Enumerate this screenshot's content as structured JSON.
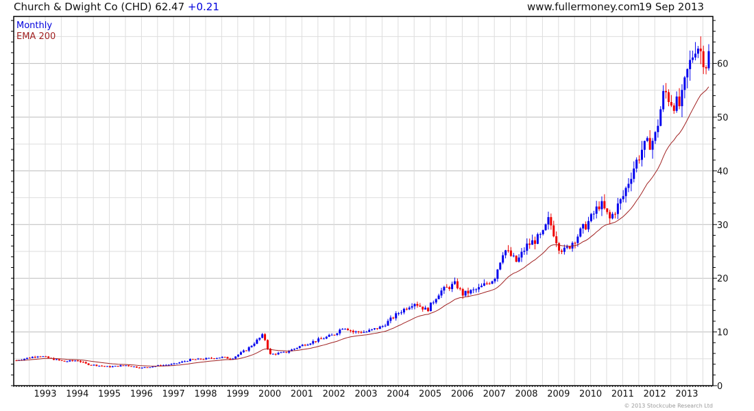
{
  "header": {
    "name": "Church & Dwight Co (CHD)",
    "price": "62.47",
    "change": "+0.21",
    "site": "www.fullermoney.com",
    "date": "19 Sep 2013"
  },
  "legend": {
    "series1": "Monthly",
    "series2": "EMA 200"
  },
  "footer": "© 2013 Stockcube Research Ltd",
  "colors": {
    "up": "#0000ee",
    "down": "#ee0000",
    "ema": "#a02020",
    "grid": "#dddddd"
  },
  "chart_data": {
    "type": "candlestick",
    "period": "monthly",
    "x_tick_labels": [
      "1993",
      "1994",
      "1995",
      "1996",
      "1997",
      "1998",
      "1999",
      "2000",
      "2001",
      "2002",
      "2003",
      "2004",
      "2005",
      "2006",
      "2007",
      "2008",
      "2009",
      "2010",
      "2011",
      "2012",
      "2013"
    ],
    "y_tick_labels": [
      "0",
      "10",
      "20",
      "30",
      "40",
      "50",
      "60"
    ],
    "ylim": [
      0,
      68
    ],
    "xlim": [
      1992.05,
      2013.8
    ],
    "close_anchors": [
      [
        1992.1,
        4.7
      ],
      [
        1992.8,
        5.6
      ],
      [
        1993.2,
        5.0
      ],
      [
        1993.6,
        4.5
      ],
      [
        1994.0,
        4.7
      ],
      [
        1994.3,
        4.0
      ],
      [
        1995.0,
        3.5
      ],
      [
        1995.5,
        3.8
      ],
      [
        1996.0,
        3.3
      ],
      [
        1996.5,
        3.7
      ],
      [
        1997.0,
        4.0
      ],
      [
        1997.5,
        4.8
      ],
      [
        1998.0,
        5.0
      ],
      [
        1998.5,
        5.3
      ],
      [
        1998.8,
        5.0
      ],
      [
        1999.3,
        6.8
      ],
      [
        1999.8,
        9.5
      ],
      [
        2000.0,
        5.8
      ],
      [
        2000.5,
        6.2
      ],
      [
        2001.0,
        7.5
      ],
      [
        2001.5,
        8.5
      ],
      [
        2002.0,
        9.5
      ],
      [
        2002.3,
        11
      ],
      [
        2002.6,
        10
      ],
      [
        2003.0,
        10
      ],
      [
        2003.5,
        11
      ],
      [
        2004.0,
        13.5
      ],
      [
        2004.5,
        15.5
      ],
      [
        2004.9,
        14
      ],
      [
        2005.3,
        17.5
      ],
      [
        2005.8,
        19
      ],
      [
        2006.0,
        17
      ],
      [
        2006.5,
        18
      ],
      [
        2007.0,
        20
      ],
      [
        2007.3,
        25.5
      ],
      [
        2007.7,
        23
      ],
      [
        2008.0,
        26
      ],
      [
        2008.5,
        28
      ],
      [
        2008.7,
        31
      ],
      [
        2009.0,
        26
      ],
      [
        2009.2,
        25
      ],
      [
        2009.6,
        28
      ],
      [
        2010.0,
        31
      ],
      [
        2010.3,
        34
      ],
      [
        2010.6,
        31
      ],
      [
        2011.0,
        35
      ],
      [
        2011.3,
        40
      ],
      [
        2011.6,
        44
      ],
      [
        2012.0,
        46
      ],
      [
        2012.3,
        55
      ],
      [
        2012.5,
        53
      ],
      [
        2012.8,
        52
      ],
      [
        2013.0,
        58
      ],
      [
        2013.3,
        64
      ],
      [
        2013.6,
        60
      ],
      [
        2013.72,
        62.47
      ]
    ]
  }
}
